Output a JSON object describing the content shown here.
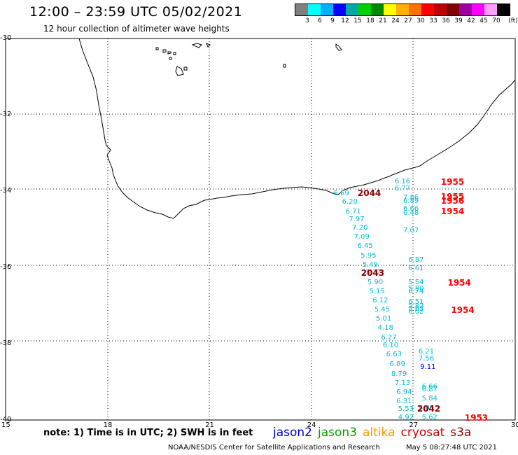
{
  "header": {
    "title": "12:00 – 23:59 UTC 05/02/2021",
    "subtitle": "12 hour collection of altimeter wave heights"
  },
  "legend": {
    "unit": "(ft)",
    "colors": [
      "#808080",
      "#00ffff",
      "#00b0ff",
      "#0000ff",
      "#00a8a8",
      "#00d000",
      "#008800",
      "#ffff00",
      "#ffb000",
      "#ff7000",
      "#ff0000",
      "#c00000",
      "#800000",
      "#a000a0",
      "#ff00ff",
      "#ffa0ff",
      "#000000"
    ],
    "labels": [
      "3",
      "6",
      "9",
      "12",
      "15",
      "18",
      "21",
      "24",
      "27",
      "30",
      "33",
      "36",
      "39",
      "42",
      "45",
      "70"
    ]
  },
  "axes": {
    "lat_labels": [
      "-30",
      "-32",
      "-34",
      "-36",
      "-38",
      "-40"
    ],
    "lon_labels": [
      "15",
      "18",
      "21",
      "24",
      "27",
      "30"
    ]
  },
  "wave_heights": [
    {
      "lon": 24.9,
      "lat": -34.07,
      "value": "6.69",
      "color": "#00bcd4"
    },
    {
      "lon": 25.15,
      "lat": -34.3,
      "value": "6.20",
      "color": "#00bcd4"
    },
    {
      "lon": 25.25,
      "lat": -34.55,
      "value": "6.71",
      "color": "#00bcd4"
    },
    {
      "lon": 25.35,
      "lat": -34.75,
      "value": "7.97",
      "color": "#00bcd4"
    },
    {
      "lon": 25.45,
      "lat": -34.98,
      "value": "7.20",
      "color": "#00bcd4"
    },
    {
      "lon": 25.5,
      "lat": -35.22,
      "value": "7.09",
      "color": "#00bcd4"
    },
    {
      "lon": 25.6,
      "lat": -35.45,
      "value": "6.45",
      "color": "#00bcd4"
    },
    {
      "lon": 25.7,
      "lat": -35.7,
      "value": "5.95",
      "color": "#00bcd4"
    },
    {
      "lon": 25.75,
      "lat": -35.95,
      "value": "5.49",
      "color": "#00bcd4"
    },
    {
      "lon": 25.85,
      "lat": -36.15,
      "value": "5.37",
      "color": "#00bcd4"
    },
    {
      "lon": 25.9,
      "lat": -36.4,
      "value": "5.90",
      "color": "#00bcd4"
    },
    {
      "lon": 25.95,
      "lat": -36.65,
      "value": "5.15",
      "color": "#00bcd4"
    },
    {
      "lon": 26.05,
      "lat": -36.88,
      "value": "6.12",
      "color": "#00bcd4"
    },
    {
      "lon": 26.1,
      "lat": -37.12,
      "value": "5.45",
      "color": "#00bcd4"
    },
    {
      "lon": 26.15,
      "lat": -37.35,
      "value": "5.01",
      "color": "#00bcd4"
    },
    {
      "lon": 26.2,
      "lat": -37.6,
      "value": "4.18",
      "color": "#00bcd4"
    },
    {
      "lon": 26.3,
      "lat": -37.85,
      "value": "6.27",
      "color": "#00bcd4"
    },
    {
      "lon": 26.35,
      "lat": -38.05,
      "value": "6.10",
      "color": "#00bcd4"
    },
    {
      "lon": 26.45,
      "lat": -38.3,
      "value": "6.63",
      "color": "#00bcd4"
    },
    {
      "lon": 26.55,
      "lat": -38.55,
      "value": "6.89",
      "color": "#00bcd4"
    },
    {
      "lon": 26.6,
      "lat": -38.8,
      "value": "8.79",
      "color": "#00bcd4"
    },
    {
      "lon": 26.7,
      "lat": -39.05,
      "value": "7.13",
      "color": "#00bcd4"
    },
    {
      "lon": 26.75,
      "lat": -39.28,
      "value": "6.94",
      "color": "#00bcd4"
    },
    {
      "lon": 26.75,
      "lat": -39.52,
      "value": "6.31",
      "color": "#00bcd4"
    },
    {
      "lon": 26.8,
      "lat": -39.72,
      "value": "5.53",
      "color": "#00bcd4"
    },
    {
      "lon": 26.8,
      "lat": -39.95,
      "value": "4.92",
      "color": "#00bcd4"
    },
    {
      "lon": 26.7,
      "lat": -33.77,
      "value": "6.16",
      "color": "#00bcd4"
    },
    {
      "lon": 26.7,
      "lat": -33.95,
      "value": "6.77",
      "color": "#00bcd4"
    },
    {
      "lon": 26.95,
      "lat": -34.18,
      "value": "7.86",
      "color": "#00bcd4"
    },
    {
      "lon": 26.95,
      "lat": -34.28,
      "value": "6.89",
      "color": "#00bcd4"
    },
    {
      "lon": 26.95,
      "lat": -34.48,
      "value": "6.66",
      "color": "#00bcd4"
    },
    {
      "lon": 26.95,
      "lat": -34.58,
      "value": "6.48",
      "color": "#00bcd4"
    },
    {
      "lon": 26.95,
      "lat": -35.05,
      "value": "7.07",
      "color": "#00bcd4"
    },
    {
      "lon": 27.1,
      "lat": -35.82,
      "value": "6.87",
      "color": "#00bcd4"
    },
    {
      "lon": 27.1,
      "lat": -36.03,
      "value": "6.61",
      "color": "#00bcd4"
    },
    {
      "lon": 27.1,
      "lat": -36.4,
      "value": "5.54",
      "color": "#00bcd4"
    },
    {
      "lon": 27.1,
      "lat": -36.57,
      "value": "5.80",
      "color": "#00bcd4"
    },
    {
      "lon": 27.1,
      "lat": -36.65,
      "value": "6.74",
      "color": "#00bcd4"
    },
    {
      "lon": 27.1,
      "lat": -36.92,
      "value": "6.51",
      "color": "#00bcd4"
    },
    {
      "lon": 27.1,
      "lat": -37.03,
      "value": "5.82",
      "color": "#00bcd4"
    },
    {
      "lon": 27.1,
      "lat": -37.1,
      "value": "5.63",
      "color": "#00bcd4"
    },
    {
      "lon": 27.1,
      "lat": -37.17,
      "value": "6.02",
      "color": "#00bcd4"
    },
    {
      "lon": 27.4,
      "lat": -38.22,
      "value": "6.21",
      "color": "#00bcd4"
    },
    {
      "lon": 27.4,
      "lat": -38.4,
      "value": "7.56",
      "color": "#00bcd4"
    },
    {
      "lon": 27.45,
      "lat": -38.62,
      "value": "9.11",
      "color": "#0000ff"
    },
    {
      "lon": 27.5,
      "lat": -39.13,
      "value": "6.66",
      "color": "#00bcd4"
    },
    {
      "lon": 27.5,
      "lat": -39.22,
      "value": "6.87",
      "color": "#00bcd4"
    },
    {
      "lon": 27.5,
      "lat": -39.45,
      "value": "5.84",
      "color": "#00bcd4"
    },
    {
      "lon": 27.4,
      "lat": -39.7,
      "value": "5.05",
      "color": "#00bcd4"
    },
    {
      "lon": 27.5,
      "lat": -39.95,
      "value": "5.62",
      "color": "#00bcd4"
    }
  ],
  "pass_times": [
    {
      "lon": 25.65,
      "lat": -34.05,
      "value": "2044",
      "color": "#8b0000"
    },
    {
      "lon": 25.75,
      "lat": -36.15,
      "value": "2043",
      "color": "#8b0000"
    },
    {
      "lon": 27.4,
      "lat": -39.7,
      "value": "2042",
      "color": "#8b0000"
    },
    {
      "lon": 28.1,
      "lat": -33.77,
      "value": "1955",
      "color": "#ff0000"
    },
    {
      "lon": 28.1,
      "lat": -34.15,
      "value": "1955",
      "color": "#ff0000"
    },
    {
      "lon": 28.1,
      "lat": -34.25,
      "value": "1956",
      "color": "#ff0000"
    },
    {
      "lon": 28.1,
      "lat": -34.53,
      "value": "1954",
      "color": "#ff0000"
    },
    {
      "lon": 28.3,
      "lat": -36.4,
      "value": "1954",
      "color": "#ff0000"
    },
    {
      "lon": 28.4,
      "lat": -37.12,
      "value": "1954",
      "color": "#ff0000"
    },
    {
      "lon": 28.8,
      "lat": -39.95,
      "value": "1953",
      "color": "#ff0000"
    }
  ],
  "footer": {
    "note": "note:  1) Time is in UTC;  2) SWH is in feet",
    "satellites": [
      {
        "name": "jason2",
        "color": "#0000cc"
      },
      {
        "name": "jason3",
        "color": "#00a000"
      },
      {
        "name": "altika",
        "color": "#ff9900"
      },
      {
        "name": "cryosat",
        "color": "#cc0000"
      },
      {
        "name": "s3a",
        "color": "#990000"
      }
    ],
    "credit": "NOAA/NESDIS Center for Satellite Applications and Research",
    "generated": "May  5 08:27:48 UTC 2021"
  }
}
